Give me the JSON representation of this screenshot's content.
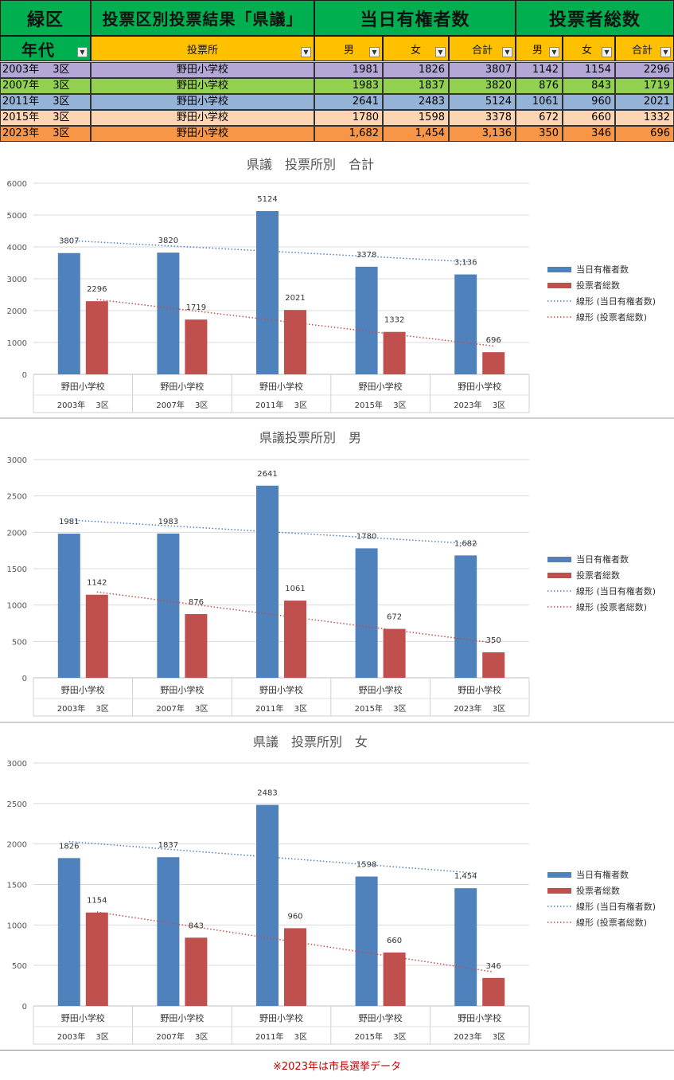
{
  "header": {
    "ward": "緑区",
    "title": "投票区別投票結果「県議」",
    "group_voters": "当日有権者数",
    "group_turnout": "投票者総数",
    "col_year": "年代",
    "col_place": "投票所",
    "col_male": "男",
    "col_female": "女",
    "col_total": "合計"
  },
  "colors": {
    "green_header": "#00b050",
    "orange_header": "#ffc000",
    "row_2003": "#b4a7d6",
    "row_2007": "#92d050",
    "row_2011": "#95b3d7",
    "row_2015": "#fcd5b4",
    "row_2023": "#f79646",
    "blue_bar": "#4f81bd",
    "red_bar": "#c0504d"
  },
  "rows": [
    {
      "year": "2003年　 3区",
      "place": "野田小学校",
      "v_m": "1981",
      "v_f": "1826",
      "v_t": "3807",
      "t_m": "1142",
      "t_f": "1154",
      "t_t": "2296"
    },
    {
      "year": "2007年　 3区",
      "place": "野田小学校",
      "v_m": "1983",
      "v_f": "1837",
      "v_t": "3820",
      "t_m": "876",
      "t_f": "843",
      "t_t": "1719"
    },
    {
      "year": "2011年　 3区",
      "place": "野田小学校",
      "v_m": "2641",
      "v_f": "2483",
      "v_t": "5124",
      "t_m": "1061",
      "t_f": "960",
      "t_t": "2021"
    },
    {
      "year": "2015年　 3区",
      "place": "野田小学校",
      "v_m": "1780",
      "v_f": "1598",
      "v_t": "3378",
      "t_m": "672",
      "t_f": "660",
      "t_t": "1332"
    },
    {
      "year": "2023年　 3区",
      "place": "野田小学校",
      "v_m": "1,682",
      "v_f": "1,454",
      "v_t": "3,136",
      "t_m": "350",
      "t_f": "346",
      "t_t": "696"
    }
  ],
  "note": "※2023年は市長選挙データ",
  "chart_data": [
    {
      "type": "bar",
      "title": "県議　投票所別　合計",
      "categories": [
        "野田小学校",
        "野田小学校",
        "野田小学校",
        "野田小学校",
        "野田小学校"
      ],
      "categories2": [
        "2003年　 3区",
        "2007年　 3区",
        "2011年　 3区",
        "2015年　 3区",
        "2023年　 3区"
      ],
      "series": [
        {
          "name": "当日有権者数",
          "values": [
            3807,
            3820,
            5124,
            3378,
            3136
          ],
          "labels": [
            "3807",
            "3820",
            "5124",
            "3378",
            "3,136"
          ]
        },
        {
          "name": "投票者総数",
          "values": [
            2296,
            1719,
            2021,
            1332,
            696
          ],
          "labels": [
            "2296",
            "1719",
            "2021",
            "1332",
            "696"
          ]
        }
      ],
      "trendlines": [
        {
          "name": "線形 (当日有権者数)",
          "start": 4200,
          "end": 3520
        },
        {
          "name": "線形 (投票者総数)",
          "start": 2350,
          "end": 890
        }
      ],
      "ylim": [
        0,
        6000
      ],
      "yticks": [
        0,
        1000,
        2000,
        3000,
        4000,
        5000,
        6000
      ],
      "legend": "right"
    },
    {
      "type": "bar",
      "title": "県議投票所別　男",
      "categories": [
        "野田小学校",
        "野田小学校",
        "野田小学校",
        "野田小学校",
        "野田小学校"
      ],
      "categories2": [
        "2003年　 3区",
        "2007年　 3区",
        "2011年　 3区",
        "2015年　 3区",
        "2023年　 3区"
      ],
      "series": [
        {
          "name": "当日有権者数",
          "values": [
            1981,
            1983,
            2641,
            1780,
            1682
          ],
          "labels": [
            "1981",
            "1983",
            "2641",
            "1780",
            "1,682"
          ]
        },
        {
          "name": "投票者総数",
          "values": [
            1142,
            876,
            1061,
            672,
            350
          ],
          "labels": [
            "1142",
            "876",
            "1061",
            "672",
            "350"
          ]
        }
      ],
      "trendlines": [
        {
          "name": "線形 (当日有権者数)",
          "start": 2170,
          "end": 1840
        },
        {
          "name": "線形 (投票者総数)",
          "start": 1180,
          "end": 480
        }
      ],
      "ylim": [
        0,
        3000
      ],
      "yticks": [
        0,
        500,
        1000,
        1500,
        2000,
        2500,
        3000
      ],
      "legend": "right"
    },
    {
      "type": "bar",
      "title": "県議　投票所別　女",
      "categories": [
        "野田小学校",
        "野田小学校",
        "野田小学校",
        "野田小学校",
        "野田小学校"
      ],
      "categories2": [
        "2003年　 3区",
        "2007年　 3区",
        "2011年　 3区",
        "2015年　 3区",
        "2023年　 3区"
      ],
      "series": [
        {
          "name": "当日有権者数",
          "values": [
            1826,
            1837,
            2483,
            1598,
            1454
          ],
          "labels": [
            "1826",
            "1837",
            "2483",
            "1598",
            "1,454"
          ]
        },
        {
          "name": "投票者総数",
          "values": [
            1154,
            843,
            960,
            660,
            346
          ],
          "labels": [
            "1154",
            "843",
            "960",
            "660",
            "346"
          ]
        }
      ],
      "trendlines": [
        {
          "name": "線形 (当日有権者数)",
          "start": 2030,
          "end": 1640
        },
        {
          "name": "線形 (投票者総数)",
          "start": 1160,
          "end": 420
        }
      ],
      "ylim": [
        0,
        3000
      ],
      "yticks": [
        0,
        500,
        1000,
        1500,
        2000,
        2500,
        3000
      ],
      "legend": "right"
    }
  ]
}
